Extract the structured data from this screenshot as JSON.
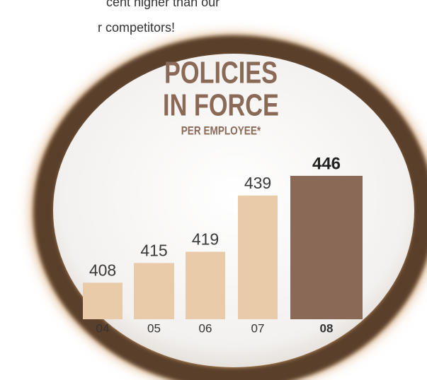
{
  "chart_data": {
    "type": "bar",
    "annotations": [
      "cent higher than our",
      "r competitors!"
    ],
    "title_lines": [
      "POLICIES",
      "IN FORCE"
    ],
    "subtitle": "PER EMPLOYEE*",
    "categories": [
      "04",
      "05",
      "06",
      "07",
      "08"
    ],
    "values": [
      408,
      415,
      419,
      439,
      446
    ],
    "colors": [
      "#e9cba9",
      "#e9cba9",
      "#e9cba9",
      "#e9cba9",
      "#8a6a57"
    ],
    "ylim": [
      395,
      450
    ]
  }
}
